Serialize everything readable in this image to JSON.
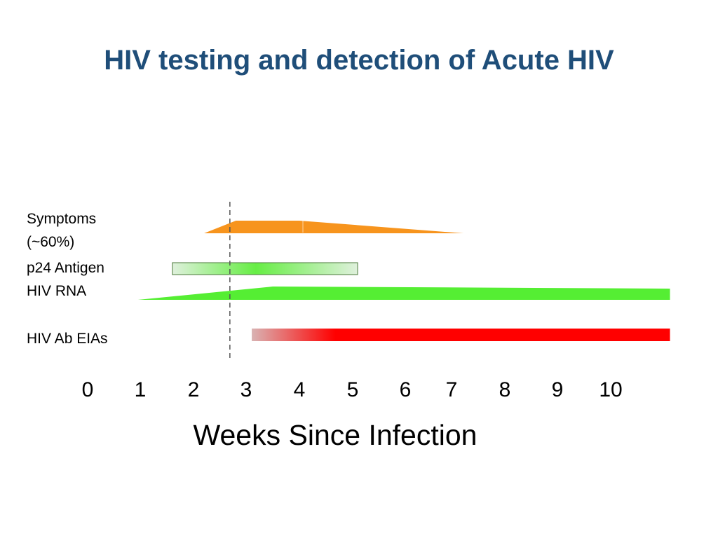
{
  "title": "HIV testing and detection of Acute HIV",
  "rows": {
    "symptoms_line1": "Symptoms",
    "symptoms_line2": "(~60%)",
    "p24": "p24 Antigen",
    "rna": "HIV RNA",
    "ab": "HIV Ab EIAs"
  },
  "axis": {
    "ticks": [
      "0",
      "1",
      "2",
      "3",
      "4",
      "5",
      "6",
      "7",
      "8",
      "9",
      "10"
    ],
    "title": "Weeks Since Infection"
  },
  "colors": {
    "title": "#1f4e79",
    "symptoms": "#f7941d",
    "p24_start": "#dff0dc",
    "p24_mid": "#66ee44",
    "rna": "#55ee33",
    "ab_start": "#d9b3b3",
    "ab": "#ff0000",
    "marker": "#555555"
  },
  "chart_data": {
    "type": "timeline",
    "title": "HIV testing and detection of Acute HIV",
    "xlabel": "Weeks Since Infection",
    "xlim": [
      0,
      11
    ],
    "categories": [
      "0",
      "1",
      "2",
      "3",
      "4",
      "5",
      "6",
      "7",
      "8",
      "9",
      "10"
    ],
    "marker_week": 2.7,
    "series": [
      {
        "name": "Symptoms (~60%)",
        "start": 2.2,
        "peak_start": 2.8,
        "peak_end": 4.0,
        "end": 7.1
      },
      {
        "name": "p24 Antigen",
        "start": 1.6,
        "end": 5.1
      },
      {
        "name": "HIV RNA",
        "start": 0.95,
        "peak_start": 3.5,
        "end": 11
      },
      {
        "name": "HIV Ab EIAs",
        "start": 3.1,
        "end": 11
      }
    ]
  }
}
